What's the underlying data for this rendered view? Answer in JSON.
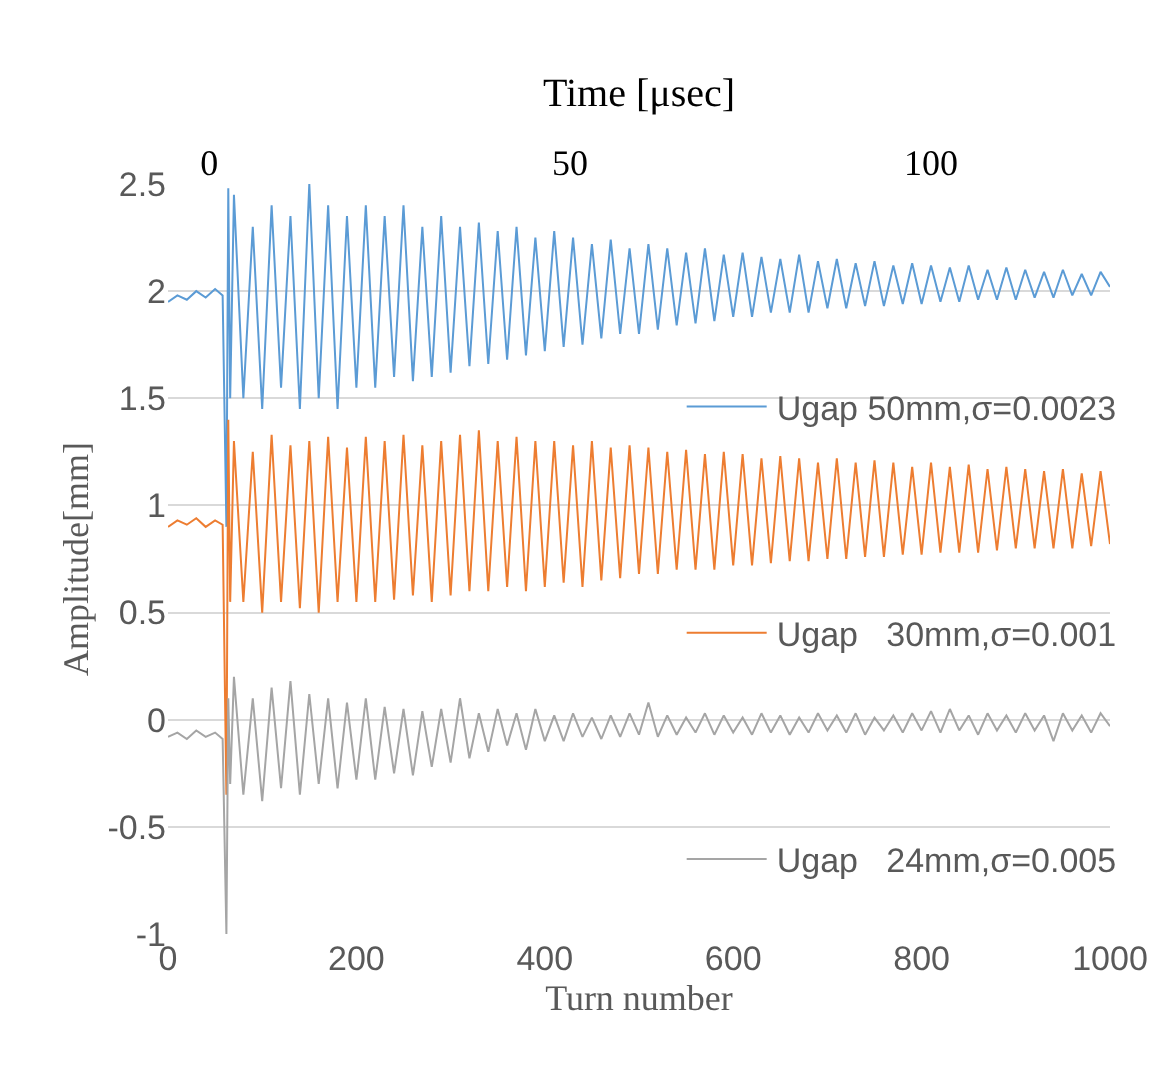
{
  "chart_data": {
    "type": "line",
    "xlabel": "Turn number",
    "ylabel": "Amplitude[mm]",
    "x2label": "Time [μsec]",
    "xlim": [
      0,
      1000
    ],
    "xticks": [
      0,
      200,
      400,
      600,
      800,
      1000
    ],
    "ylim": [
      -1,
      2.5
    ],
    "yticks": [
      -1,
      -0.5,
      0,
      0.5,
      1,
      1.5,
      2,
      2.5
    ],
    "x2lim": [
      -5.7,
      124.8
    ],
    "x2ticks": [
      0,
      50,
      100
    ],
    "grid": "y",
    "legend": "right",
    "marker": "none",
    "line_style": "solid",
    "x": [
      0,
      10,
      20,
      30,
      40,
      50,
      58,
      62,
      64,
      66,
      70,
      80,
      90,
      100,
      110,
      120,
      130,
      140,
      150,
      160,
      170,
      180,
      190,
      200,
      210,
      220,
      230,
      240,
      250,
      260,
      270,
      280,
      290,
      300,
      310,
      320,
      330,
      340,
      350,
      360,
      370,
      380,
      390,
      400,
      410,
      420,
      430,
      440,
      450,
      460,
      470,
      480,
      490,
      500,
      510,
      520,
      530,
      540,
      550,
      560,
      570,
      580,
      590,
      600,
      610,
      620,
      630,
      640,
      650,
      660,
      670,
      680,
      690,
      700,
      710,
      720,
      730,
      740,
      750,
      760,
      770,
      780,
      790,
      800,
      810,
      820,
      830,
      840,
      850,
      860,
      870,
      880,
      890,
      900,
      910,
      920,
      930,
      940,
      950,
      960,
      970,
      980,
      990,
      1000
    ],
    "series": [
      {
        "name": "Ugap 50mm,σ=0.0023",
        "color": "#5b9bd5",
        "values": [
          1.95,
          1.98,
          1.96,
          2.0,
          1.97,
          2.01,
          1.98,
          0.9,
          2.48,
          1.5,
          2.45,
          1.5,
          2.3,
          1.45,
          2.4,
          1.55,
          2.35,
          1.45,
          2.5,
          1.5,
          2.4,
          1.45,
          2.35,
          1.55,
          2.4,
          1.55,
          2.35,
          1.6,
          2.4,
          1.58,
          2.3,
          1.6,
          2.35,
          1.62,
          2.3,
          1.65,
          2.32,
          1.66,
          2.28,
          1.68,
          2.3,
          1.7,
          2.25,
          1.72,
          2.28,
          1.74,
          2.25,
          1.75,
          2.22,
          1.78,
          2.24,
          1.8,
          2.2,
          1.8,
          2.22,
          1.82,
          2.2,
          1.84,
          2.18,
          1.85,
          2.2,
          1.86,
          2.17,
          1.88,
          2.18,
          1.88,
          2.16,
          1.9,
          2.15,
          1.9,
          2.17,
          1.9,
          2.14,
          1.92,
          2.15,
          1.92,
          2.13,
          1.93,
          2.14,
          1.93,
          2.12,
          1.94,
          2.13,
          1.94,
          2.12,
          1.95,
          2.11,
          1.95,
          2.12,
          1.96,
          2.1,
          1.96,
          2.11,
          1.96,
          2.1,
          1.97,
          2.09,
          1.97,
          2.1,
          1.98,
          2.08,
          1.98,
          2.09,
          2.02
        ]
      },
      {
        "name": "Ugap   30mm,σ=0.001",
        "color": "#ed7d31",
        "values": [
          0.9,
          0.93,
          0.91,
          0.94,
          0.9,
          0.93,
          0.91,
          -0.35,
          1.4,
          0.55,
          1.3,
          0.55,
          1.25,
          0.5,
          1.33,
          0.55,
          1.28,
          0.52,
          1.3,
          0.5,
          1.32,
          0.55,
          1.27,
          0.55,
          1.32,
          0.55,
          1.3,
          0.56,
          1.33,
          0.58,
          1.28,
          0.55,
          1.3,
          0.58,
          1.33,
          0.6,
          1.35,
          0.6,
          1.3,
          0.62,
          1.32,
          0.6,
          1.3,
          0.62,
          1.3,
          0.64,
          1.28,
          0.62,
          1.3,
          0.65,
          1.27,
          0.66,
          1.28,
          0.68,
          1.27,
          0.68,
          1.25,
          0.7,
          1.26,
          0.7,
          1.24,
          0.7,
          1.25,
          0.72,
          1.24,
          0.72,
          1.22,
          0.73,
          1.23,
          0.74,
          1.22,
          0.74,
          1.2,
          0.75,
          1.22,
          0.75,
          1.2,
          0.76,
          1.21,
          0.76,
          1.2,
          0.77,
          1.18,
          0.77,
          1.2,
          0.78,
          1.18,
          0.78,
          1.19,
          0.78,
          1.17,
          0.79,
          1.18,
          0.8,
          1.17,
          0.8,
          1.16,
          0.8,
          1.17,
          0.8,
          1.15,
          0.81,
          1.16,
          0.82
        ]
      },
      {
        "name": "Ugap   24mm,σ=0.005",
        "color": "#a5a5a5",
        "values": [
          -0.08,
          -0.06,
          -0.09,
          -0.05,
          -0.08,
          -0.06,
          -0.09,
          -1.0,
          0.1,
          -0.3,
          0.2,
          -0.35,
          0.1,
          -0.38,
          0.15,
          -0.32,
          0.18,
          -0.35,
          0.12,
          -0.3,
          0.1,
          -0.32,
          0.08,
          -0.28,
          0.1,
          -0.28,
          0.06,
          -0.25,
          0.05,
          -0.26,
          0.04,
          -0.22,
          0.05,
          -0.2,
          0.1,
          -0.18,
          0.03,
          -0.15,
          0.05,
          -0.12,
          0.03,
          -0.14,
          0.05,
          -0.1,
          0.02,
          -0.1,
          0.03,
          -0.08,
          0.01,
          -0.09,
          0.02,
          -0.08,
          0.03,
          -0.07,
          0.08,
          -0.08,
          0.02,
          -0.07,
          0.01,
          -0.06,
          0.03,
          -0.07,
          0.02,
          -0.06,
          0.01,
          -0.07,
          0.03,
          -0.06,
          0.02,
          -0.07,
          0.01,
          -0.06,
          0.03,
          -0.05,
          0.02,
          -0.06,
          0.03,
          -0.07,
          0.01,
          -0.05,
          0.02,
          -0.06,
          0.03,
          -0.05,
          0.04,
          -0.06,
          0.05,
          -0.05,
          0.02,
          -0.07,
          0.03,
          -0.05,
          0.02,
          -0.06,
          0.03,
          -0.05,
          0.02,
          -0.1,
          0.03,
          -0.05,
          0.02,
          -0.06,
          0.03,
          -0.03
        ]
      }
    ]
  }
}
